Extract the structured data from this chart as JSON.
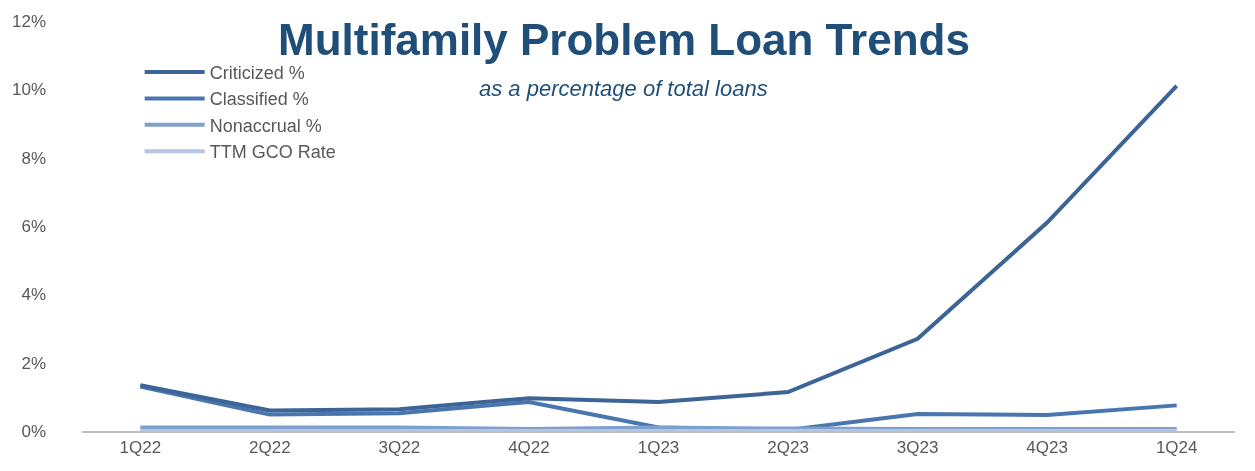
{
  "chart_data": {
    "type": "line",
    "title": "Multifamily Problem Loan Trends",
    "subtitle": "as a percentage of total loans",
    "categories": [
      "1Q22",
      "2Q22",
      "3Q22",
      "4Q22",
      "1Q23",
      "2Q23",
      "3Q23",
      "4Q23",
      "1Q24"
    ],
    "series": [
      {
        "name": "Criticized %",
        "color": "#3c6496",
        "values": [
          1.34,
          0.6,
          0.64,
          0.96,
          0.85,
          1.14,
          2.7,
          6.1,
          10.1
        ]
      },
      {
        "name": "Classified %",
        "color": "#4a76b0",
        "values": [
          1.3,
          0.48,
          0.52,
          0.85,
          0.1,
          0.03,
          0.5,
          0.47,
          0.75
        ]
      },
      {
        "name": "Nonaccrual %",
        "color": "#7f9fcc",
        "values": [
          0.1,
          0.1,
          0.1,
          0.06,
          0.1,
          0.07,
          0.06,
          0.06,
          0.06
        ]
      },
      {
        "name": "TTM GCO Rate",
        "color": "#b4c6e2",
        "values": [
          0,
          0,
          0,
          0,
          0,
          0,
          0,
          0,
          0
        ]
      }
    ],
    "ylim": [
      0,
      12
    ],
    "yticks": [
      {
        "value": 0,
        "label": "0%"
      },
      {
        "value": 2,
        "label": "2%"
      },
      {
        "value": 4,
        "label": "4%"
      },
      {
        "value": 6,
        "label": "6%"
      },
      {
        "value": 8,
        "label": "8%"
      },
      {
        "value": 10,
        "label": "10%"
      },
      {
        "value": 12,
        "label": "12%"
      }
    ],
    "legend": "top left",
    "marker": "none",
    "line_style": "solid"
  }
}
